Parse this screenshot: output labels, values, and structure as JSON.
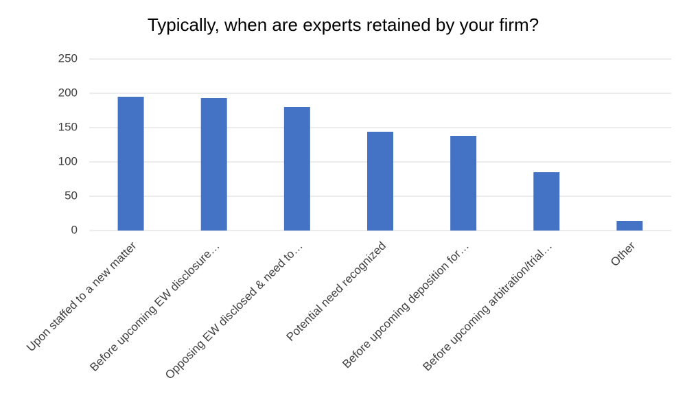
{
  "chart_data": {
    "type": "bar",
    "title": "Typically, when are experts retained by your firm?",
    "categories": [
      "Upon staffed to a new matter",
      "Before upcoming EW disclosure…",
      "Opposing EW disclosed & need to…",
      "Potential need recognized",
      "Before upcoming deposition for…",
      "Before upcoming arbitration/trial…",
      "Other"
    ],
    "values": [
      195,
      193,
      180,
      144,
      138,
      85,
      14
    ],
    "color": "#4472c4",
    "ylim": [
      0,
      250
    ],
    "yticks": [
      0,
      50,
      100,
      150,
      200,
      250
    ],
    "grid": true
  }
}
